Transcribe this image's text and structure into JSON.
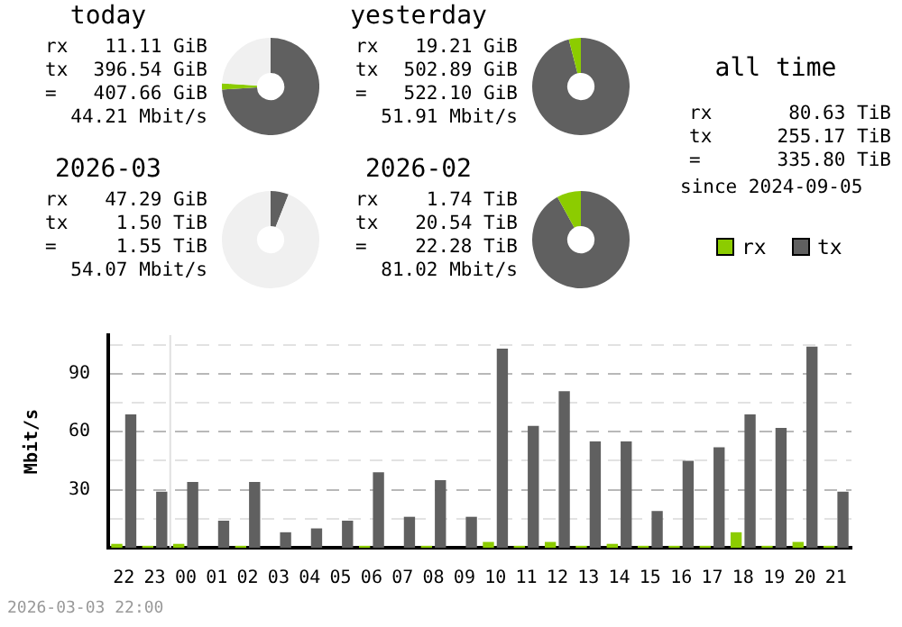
{
  "chart_data": [
    {
      "type": "donut",
      "title": "today",
      "categories": [
        null,
        null,
        null
      ],
      "values": [
        74,
        2,
        24
      ],
      "colors": [
        "#606060",
        "#8ccc00",
        "#f0f0f0"
      ],
      "legend": false,
      "annotations": [
        "rx 11.11 GiB",
        "tx 396.54 GiB",
        "= 407.66 GiB",
        "44.21 Mbit/s"
      ]
    },
    {
      "type": "donut",
      "title": "yesterday",
      "categories": [
        null,
        null
      ],
      "values": [
        96,
        4
      ],
      "colors": [
        "#606060",
        "#8ccc00"
      ],
      "legend": false,
      "annotations": [
        "rx 19.21 GiB",
        "tx 502.89 GiB",
        "= 522.10 GiB",
        "51.91 Mbit/s"
      ]
    },
    {
      "type": "donut",
      "title": "2026-03",
      "categories": [
        null,
        null,
        null
      ],
      "values": [
        6,
        null,
        94
      ],
      "colors": [
        "#606060",
        "#8ccc00",
        "#f0f0f0"
      ],
      "legend": false,
      "annotations": [
        "rx 47.29 GiB",
        "tx 1.50 TiB",
        "= 1.55 TiB",
        "54.07 Mbit/s"
      ]
    },
    {
      "type": "donut",
      "title": "2026-02",
      "categories": [
        null,
        null
      ],
      "values": [
        92,
        8
      ],
      "colors": [
        "#606060",
        "#8ccc00"
      ],
      "legend": false,
      "annotations": [
        "rx 1.74 TiB",
        "tx 20.54 TiB",
        "= 22.28 TiB",
        "81.02 Mbit/s"
      ]
    },
    {
      "type": "other",
      "title": "all time",
      "annotations": [
        "rx 80.63 TiB",
        "tx 255.17 TiB",
        "= 335.80 TiB",
        "since 2024-09-05"
      ]
    },
    {
      "type": "bar",
      "ylabel": "Mbit/s",
      "categories": [
        "22",
        "23",
        "00",
        "01",
        "02",
        "03",
        "04",
        "05",
        "06",
        "07",
        "08",
        "09",
        "10",
        "11",
        "12",
        "13",
        "14",
        "15",
        "16",
        "17",
        "18",
        "19",
        "20",
        "21"
      ],
      "series": [
        {
          "name": "rx",
          "color": "#8ccc00",
          "values": [
            2,
            1,
            2,
            0,
            1,
            0,
            0,
            0,
            1,
            0,
            1,
            0,
            3,
            1,
            3,
            1,
            2,
            1,
            1,
            1,
            8,
            1,
            3,
            1
          ]
        },
        {
          "name": "tx",
          "color": "#606060",
          "values": [
            69,
            29,
            34,
            14,
            34,
            8,
            10,
            14,
            39,
            16,
            35,
            16,
            103,
            63,
            81,
            55,
            55,
            19,
            45,
            52,
            69,
            62,
            104,
            29
          ]
        }
      ],
      "ylim": [
        0,
        110
      ],
      "yticks": [
        {
          "value": 15,
          "label": null
        },
        30,
        {
          "value": 45,
          "label": null
        },
        60,
        {
          "value": 75,
          "label": null
        },
        90,
        {
          "value": 105,
          "label": null
        }
      ],
      "grid": "y",
      "legend": "top right",
      "line_style": "dashed",
      "ref_lines": [
        {
          "axis": "x",
          "value": "00",
          "color": "#e0e0e0"
        }
      ],
      "annotations": [
        "2026-03-03 22:00"
      ]
    }
  ]
}
